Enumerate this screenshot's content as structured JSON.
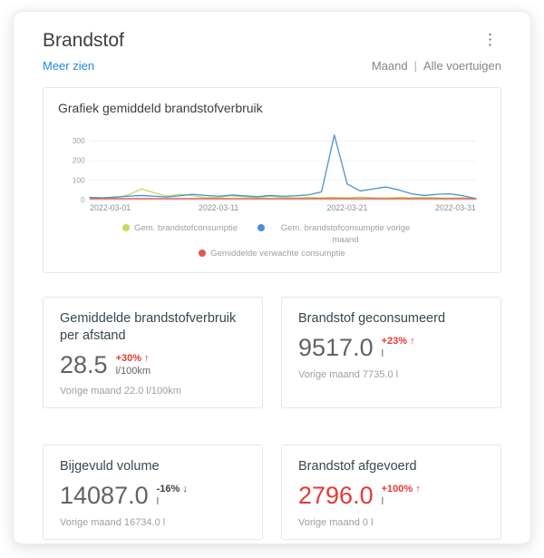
{
  "header": {
    "title": "Brandstof",
    "menu_icon": "⋮",
    "link": "Meer zien",
    "period_filter": "Maand",
    "separator": "|",
    "vehicle_filter": "Alle voertuigen"
  },
  "chart_card": {
    "title": "Grafiek gemiddeld brandstofverbruik"
  },
  "chart_data": {
    "type": "line",
    "title": "Grafiek gemiddeld brandstofverbruik",
    "x_ticks": [
      "2022-03-01",
      "2022-03-11",
      "2022-03-21",
      "2022-03-31"
    ],
    "x_tick_days": [
      1,
      11,
      21,
      31
    ],
    "y_ticks": [
      0,
      100,
      200,
      300
    ],
    "ylim": [
      0,
      340
    ],
    "grid": true,
    "legend_position": "bottom",
    "series": [
      {
        "name": "Gem. brandstofconsumptie",
        "color": "#c9d65c",
        "values": [
          4,
          6,
          10,
          25,
          55,
          35,
          18,
          28,
          20,
          10,
          12,
          20,
          15,
          10,
          18,
          12,
          8,
          12,
          10,
          12,
          10,
          14,
          10,
          8,
          12,
          10,
          12,
          10,
          8,
          10,
          4
        ]
      },
      {
        "name": "Gem. brandstofconsumptie vorige maand",
        "color": "#4a90d2",
        "values": [
          12,
          10,
          14,
          18,
          22,
          18,
          14,
          20,
          28,
          22,
          18,
          24,
          20,
          16,
          22,
          18,
          20,
          25,
          40,
          330,
          80,
          45,
          55,
          65,
          50,
          30,
          22,
          28,
          30,
          20,
          6
        ]
      },
      {
        "name": "Gemiddelde verwachte consumptie",
        "color": "#e2574c",
        "values": [
          6,
          6,
          6,
          6,
          6,
          6,
          6,
          6,
          6,
          6,
          6,
          6,
          6,
          6,
          6,
          6,
          6,
          6,
          6,
          6,
          6,
          6,
          6,
          6,
          6,
          6,
          6,
          6,
          6,
          6,
          6
        ]
      }
    ]
  },
  "stats": [
    {
      "title": "Gemiddelde brandstofverbruik per afstand",
      "value": "28.5",
      "value_color": "#5f6368",
      "change": "+30% ↑",
      "change_color": "#e53935",
      "unit": "l/100km",
      "previous": "Vorige maand 22.0 l/100km"
    },
    {
      "title": "Brandstof geconsumeerd",
      "value": "9517.0",
      "value_color": "#5f6368",
      "change": "+23% ↑",
      "change_color": "#e53935",
      "unit": "l",
      "previous": "Vorige maand 7735.0 l"
    },
    {
      "title": "Bijgevuld volume",
      "value": "14087.0",
      "value_color": "#5f6368",
      "change": "-16% ↓",
      "change_color": "#3c4043",
      "unit": "l",
      "previous": "Vorige maand 16734.0 l"
    },
    {
      "title": "Brandstof afgevoerd",
      "value": "2796.0",
      "value_color": "#e53935",
      "change": "+100% ↑",
      "change_color": "#e53935",
      "unit": "l",
      "previous": "Vorige maand 0 l"
    }
  ]
}
